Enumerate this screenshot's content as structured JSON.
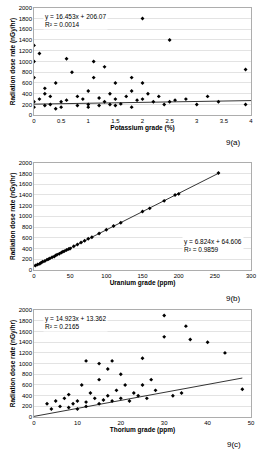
{
  "chart_data": [
    {
      "type": "scatter",
      "caption": "9(a)",
      "x_label": "Potassium grade (%)",
      "y_label": "Radiation dose rate (nGy/hr)",
      "annotations": [
        "y = 16.453x + 206.07",
        "R² = 0.0014"
      ],
      "xlim": [
        0,
        4
      ],
      "xticks": [
        0,
        0.5,
        1,
        1.5,
        2,
        2.5,
        3,
        3.5,
        4
      ],
      "ylim": [
        0,
        2000
      ],
      "yticks": [
        0,
        200,
        400,
        600,
        800,
        1000,
        1200,
        1400,
        1600,
        1800,
        2000
      ],
      "grid": true,
      "legend": false,
      "series": [
        {
          "type": "scatter",
          "marker": "diamond",
          "color": "#000000",
          "x": [
            0,
            0,
            0,
            0,
            0.1,
            0.1,
            0.2,
            0.2,
            0.3,
            0.3,
            0.4,
            0.5,
            0.5,
            0.6,
            0.7,
            0.8,
            0.8,
            0.9,
            1,
            1,
            1,
            1.1,
            1.2,
            1.2,
            1.3,
            1.4,
            1.4,
            1.5,
            1.5,
            1.6,
            1.7,
            1.8,
            1.8,
            1.9,
            2,
            2,
            2.1,
            2.2,
            2.3,
            2.4,
            2.5,
            2.6,
            2.8,
            3,
            3.2,
            3.4,
            3.9,
            0,
            0.2,
            1.5,
            2.5,
            2,
            1.3,
            0.6,
            1.8,
            3.9,
            0.4,
            1.1
          ],
          "values": [
            1300,
            1000,
            700,
            250,
            1150,
            300,
            180,
            400,
            350,
            200,
            600,
            250,
            150,
            280,
            800,
            350,
            180,
            300,
            450,
            200,
            150,
            700,
            320,
            180,
            250,
            400,
            200,
            600,
            300,
            210,
            350,
            450,
            150,
            280,
            1800,
            300,
            400,
            250,
            350,
            200,
            1400,
            280,
            300,
            200,
            350,
            250,
            850,
            150,
            500,
            180,
            250,
            600,
            900,
            1050,
            700,
            200,
            120,
            1000
          ]
        },
        {
          "type": "line",
          "line_style": "solid",
          "color": "#000000",
          "x": [
            0,
            4
          ],
          "values": [
            206,
            272
          ]
        }
      ]
    },
    {
      "type": "scatter",
      "caption": "9(b)",
      "x_label": "Uranium grade (ppm)",
      "y_label": "Radiation dose rate (nGy/hr)",
      "annotations": [
        "y = 6.824x + 64.606",
        "R² = 0.9859"
      ],
      "xlim": [
        0,
        300
      ],
      "xticks": [
        0,
        50,
        100,
        150,
        200,
        250,
        300
      ],
      "ylim": [
        0,
        2000
      ],
      "yticks": [
        0,
        200,
        400,
        600,
        800,
        1000,
        1200,
        1400,
        1600,
        1800,
        2000
      ],
      "grid": true,
      "legend": false,
      "series": [
        {
          "type": "scatter",
          "marker": "diamond",
          "color": "#000000",
          "x": [
            2,
            5,
            8,
            10,
            12,
            15,
            18,
            20,
            22,
            25,
            28,
            30,
            32,
            35,
            38,
            40,
            42,
            45,
            48,
            50,
            55,
            60,
            65,
            70,
            75,
            80,
            90,
            100,
            110,
            120,
            150,
            160,
            180,
            195,
            200,
            255
          ],
          "values": [
            80,
            100,
            115,
            135,
            150,
            165,
            190,
            200,
            215,
            235,
            250,
            270,
            285,
            300,
            325,
            340,
            350,
            370,
            390,
            400,
            440,
            475,
            510,
            545,
            580,
            610,
            680,
            750,
            820,
            880,
            1090,
            1150,
            1290,
            1400,
            1420,
            1810
          ]
        },
        {
          "type": "line",
          "line_style": "solid",
          "color": "#000000",
          "x": [
            0,
            255
          ],
          "values": [
            65,
            1805
          ]
        }
      ]
    },
    {
      "type": "scatter",
      "caption": "9(c)",
      "x_label": "Thorium grade (ppm)",
      "y_label": "Radiation dose rate (nGy/hr)",
      "annotations": [
        "y = 14.923x + 13.362",
        "R² = 0.2165"
      ],
      "xlim": [
        0,
        50
      ],
      "xticks": [
        0,
        10,
        20,
        30,
        40,
        50
      ],
      "ylim": [
        0,
        2000
      ],
      "yticks": [
        0,
        200,
        400,
        600,
        800,
        1000,
        1200,
        1400,
        1600,
        1800,
        2000
      ],
      "grid": true,
      "legend": false,
      "series": [
        {
          "type": "scatter",
          "marker": "diamond",
          "color": "#000000",
          "x": [
            3,
            4,
            5,
            6,
            7,
            8,
            8,
            9,
            10,
            10,
            11,
            12,
            12,
            13,
            14,
            15,
            15,
            16,
            17,
            18,
            18,
            19,
            20,
            21,
            22,
            23,
            24,
            25,
            26,
            27,
            28,
            30,
            32,
            34,
            36,
            40,
            44,
            48,
            20,
            30,
            35,
            12,
            17,
            25,
            15
          ],
          "values": [
            250,
            150,
            300,
            200,
            350,
            180,
            420,
            250,
            300,
            150,
            600,
            280,
            200,
            450,
            350,
            250,
            1000,
            320,
            400,
            300,
            1050,
            500,
            350,
            600,
            300,
            450,
            400,
            1100,
            350,
            700,
            500,
            1500,
            400,
            450,
            1450,
            1400,
            1200,
            520,
            800,
            1900,
            1700,
            1050,
            900,
            600,
            700
          ]
        },
        {
          "type": "line",
          "line_style": "solid",
          "color": "#000000",
          "x": [
            0,
            48
          ],
          "values": [
            13,
            730
          ]
        }
      ]
    }
  ]
}
